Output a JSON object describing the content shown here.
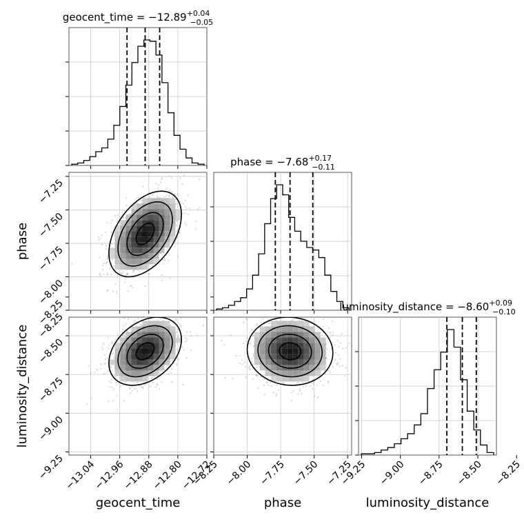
{
  "chart_data": {
    "type": "corner",
    "parameters": [
      "geocent_time",
      "phase",
      "luminosity_distance"
    ],
    "titles": [
      {
        "param": "geocent_time",
        "prefix": "geocent_time = ",
        "median": "−12.89",
        "plus": "+0.04",
        "minus": "−0.05"
      },
      {
        "param": "phase",
        "prefix": "phase = ",
        "median": "−7.68",
        "plus": "+0.17",
        "minus": "−0.11"
      },
      {
        "param": "luminosity_distance",
        "prefix": "luminosity_distance = ",
        "median": "−8.60",
        "plus": "+0.09",
        "minus": "−0.10"
      }
    ],
    "axis_labels": [
      "geocent_time",
      "phase",
      "luminosity_distance"
    ],
    "ticks": {
      "geocent_time": {
        "values": [
          -13.04,
          -12.96,
          -12.88,
          -12.8,
          -12.72
        ],
        "labels": [
          "−13.04",
          "−12.96",
          "−12.88",
          "−12.80",
          "−12.72"
        ]
      },
      "phase": {
        "values": [
          -8.25,
          -8.0,
          -7.75,
          -7.5,
          -7.25
        ],
        "labels": [
          "−8.25",
          "−8.00",
          "−7.75",
          "−7.50",
          "−7.25"
        ]
      },
      "luminosity_distance": {
        "values": [
          -9.25,
          -9.0,
          -8.75,
          -8.5,
          -8.25
        ],
        "labels": [
          "−9.25",
          "−9.00",
          "−8.75",
          "−8.50",
          "−8.25"
        ]
      }
    },
    "ranges": {
      "geocent_time": [
        -13.1,
        -12.72
      ],
      "phase": [
        -8.25,
        -7.22
      ],
      "luminosity_distance": [
        -9.27,
        -8.38
      ]
    },
    "quantiles": {
      "geocent_time": [
        -12.94,
        -12.89,
        -12.85
      ],
      "phase": [
        -7.79,
        -7.68,
        -7.51
      ],
      "luminosity_distance": [
        -8.7,
        -8.6,
        -8.51
      ]
    },
    "histograms": {
      "geocent_time": [
        1,
        2,
        4,
        7,
        11,
        14,
        21,
        32,
        47,
        64,
        82,
        95,
        100,
        99,
        88,
        66,
        42,
        24,
        13,
        6,
        2,
        1
      ],
      "phase": [
        1,
        2,
        4,
        7,
        10,
        17,
        28,
        45,
        69,
        89,
        100,
        92,
        74,
        63,
        55,
        50,
        48,
        42,
        28,
        15,
        7,
        2
      ],
      "luminosity_distance": [
        1,
        1,
        2,
        4,
        6,
        9,
        13,
        17,
        24,
        33,
        53,
        68,
        82,
        100,
        86,
        60,
        35,
        20,
        8,
        2
      ]
    },
    "pairs": [
      {
        "x": "geocent_time",
        "y": "phase",
        "mean": [
          -12.89,
          -7.68
        ],
        "sd": [
          0.05,
          0.16
        ],
        "corr": 0.45
      },
      {
        "x": "geocent_time",
        "y": "luminosity_distance",
        "mean": [
          -12.89,
          -8.6
        ],
        "sd": [
          0.05,
          0.11
        ],
        "corr": 0.35
      },
      {
        "x": "phase",
        "y": "luminosity_distance",
        "mean": [
          -7.68,
          -8.6
        ],
        "sd": [
          0.16,
          0.11
        ],
        "corr": -0.05
      }
    ],
    "grid": true
  }
}
